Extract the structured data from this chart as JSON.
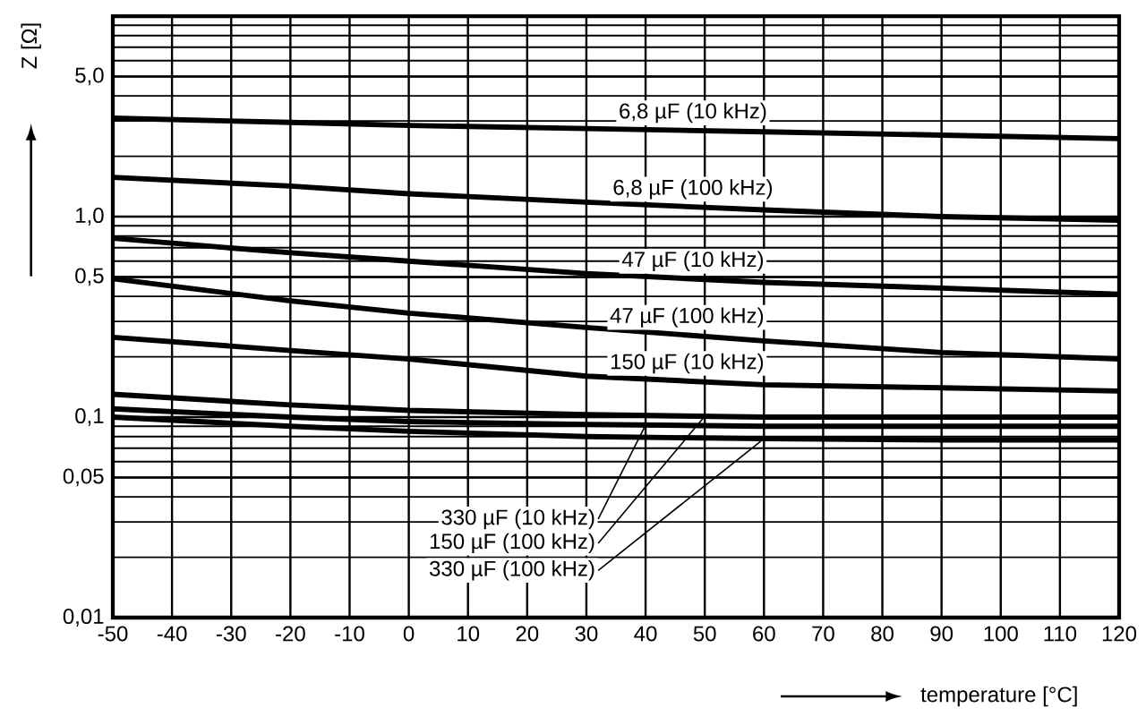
{
  "chart_data": {
    "type": "line",
    "xlabel": "temperature [°C]",
    "ylabel": "Z [Ω]",
    "log": "y",
    "grid": true,
    "marker": "none",
    "line_style": "solid",
    "xlim": [
      -50,
      120
    ],
    "ylim": [
      0.01,
      10
    ],
    "xticks": [
      -50,
      -40,
      -30,
      -20,
      -10,
      0,
      10,
      20,
      30,
      40,
      50,
      60,
      70,
      80,
      90,
      100,
      110,
      120
    ],
    "yticks": [
      {
        "value": 0.01,
        "label": "0,01"
      },
      {
        "value": 0.05,
        "label": "0,05"
      },
      {
        "value": 0.1,
        "label": "0,1"
      },
      {
        "value": 0.5,
        "label": "0,5"
      },
      {
        "value": 1,
        "label": "1,0"
      },
      {
        "value": 5,
        "label": "5,0"
      }
    ],
    "x": [
      -50,
      -20,
      0,
      30,
      60,
      90,
      120
    ],
    "series": [
      {
        "name": "6,8 µF (10 kHz)",
        "color": "#000000",
        "values": [
          3.1,
          2.95,
          2.85,
          2.75,
          2.65,
          2.55,
          2.45
        ]
      },
      {
        "name": "6,8 µF (100 kHz)",
        "color": "#000000",
        "values": [
          1.57,
          1.42,
          1.3,
          1.18,
          1.08,
          1.0,
          0.96
        ]
      },
      {
        "name": "47 µF (10 kHz)",
        "color": "#000000",
        "values": [
          0.78,
          0.66,
          0.6,
          0.52,
          0.47,
          0.44,
          0.41
        ]
      },
      {
        "name": "47 µF (100 kHz)",
        "color": "#000000",
        "values": [
          0.49,
          0.38,
          0.33,
          0.28,
          0.24,
          0.21,
          0.195
        ]
      },
      {
        "name": "150 µF (10 kHz)",
        "color": "#000000",
        "values": [
          0.25,
          0.215,
          0.195,
          0.16,
          0.145,
          0.14,
          0.135
        ]
      },
      {
        "name": "330 µF (10 kHz)",
        "color": "#000000",
        "values": [
          0.11,
          0.1,
          0.095,
          0.092,
          0.09,
          0.09,
          0.09
        ]
      },
      {
        "name": "150 µF (100 kHz)",
        "color": "#000000",
        "values": [
          0.13,
          0.115,
          0.108,
          0.103,
          0.1,
          0.1,
          0.1
        ]
      },
      {
        "name": "330 µF (100 kHz)",
        "color": "#000000",
        "values": [
          0.1,
          0.09,
          0.085,
          0.08,
          0.078,
          0.077,
          0.077
        ]
      }
    ]
  }
}
